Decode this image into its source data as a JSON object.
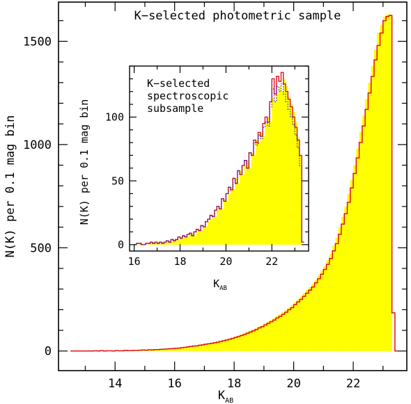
{
  "chart_data": [
    {
      "type": "bar",
      "title": "K−selected photometric sample",
      "xlabel_main": "K",
      "xlabel_sub": "AB",
      "ylabel": "N(K) per 0.1 mag bin",
      "xlim": [
        12.1,
        23.8
      ],
      "ylim": [
        -95,
        1690
      ],
      "xticks": [
        14,
        16,
        18,
        20,
        22
      ],
      "yticks": [
        0,
        500,
        1000,
        1500
      ],
      "bin_width": 0.1,
      "grid": false,
      "series": [
        {
          "style": "yellow fill",
          "color": "#ffff00",
          "x": [
            12.5,
            12.6,
            12.7,
            12.8,
            12.9,
            13.0,
            13.1,
            13.2,
            13.3,
            13.4,
            13.5,
            13.6,
            13.7,
            13.8,
            13.9,
            14.0,
            14.1,
            14.2,
            14.3,
            14.4,
            14.5,
            14.6,
            14.7,
            14.8,
            14.9,
            15.0,
            15.1,
            15.2,
            15.3,
            15.4,
            15.5,
            15.6,
            15.7,
            15.8,
            15.9,
            16.0,
            16.1,
            16.2,
            16.3,
            16.4,
            16.5,
            16.6,
            16.7,
            16.8,
            16.9,
            17.0,
            17.1,
            17.2,
            17.3,
            17.4,
            17.5,
            17.6,
            17.7,
            17.8,
            17.9,
            18.0,
            18.1,
            18.2,
            18.3,
            18.4,
            18.5,
            18.6,
            18.7,
            18.8,
            18.9,
            19.0,
            19.1,
            19.2,
            19.3,
            19.4,
            19.5,
            19.6,
            19.7,
            19.8,
            19.9,
            20.0,
            20.1,
            20.2,
            20.3,
            20.4,
            20.5,
            20.6,
            20.7,
            20.8,
            20.9,
            21.0,
            21.1,
            21.2,
            21.3,
            21.4,
            21.5,
            21.6,
            21.7,
            21.8,
            21.9,
            22.0,
            22.1,
            22.2,
            22.3,
            22.4,
            22.5,
            22.6,
            22.7,
            22.8,
            22.9,
            23.0,
            23.1,
            23.2,
            23.3,
            23.4
          ],
          "values": [
            0,
            0,
            0,
            0,
            0,
            0,
            0,
            0,
            1,
            0,
            2,
            0,
            1,
            1,
            1,
            2,
            1,
            2,
            3,
            2,
            3,
            3,
            4,
            4,
            5,
            5,
            6,
            6,
            7,
            8,
            9,
            10,
            11,
            12,
            13,
            15,
            16,
            18,
            20,
            22,
            24,
            26,
            28,
            30,
            32,
            35,
            38,
            40,
            43,
            46,
            49,
            53,
            57,
            61,
            65,
            70,
            75,
            80,
            86,
            92,
            98,
            104,
            110,
            118,
            126,
            134,
            142,
            150,
            158,
            168,
            178,
            188,
            198,
            210,
            222,
            236,
            250,
            264,
            280,
            296,
            310,
            325,
            345,
            365,
            390,
            410,
            440,
            470,
            510,
            550,
            600,
            650,
            700,
            760,
            830,
            900,
            980,
            1060,
            1140,
            1220,
            1300,
            1380,
            1460,
            1540,
            1580,
            1620,
            1630,
            1630,
            0,
            0
          ]
        },
        {
          "style": "red step line",
          "color": "#e0101a",
          "x": [
            12.5,
            12.6,
            12.7,
            12.8,
            12.9,
            13.0,
            13.1,
            13.2,
            13.3,
            13.4,
            13.5,
            13.6,
            13.7,
            13.8,
            13.9,
            14.0,
            14.1,
            14.2,
            14.3,
            14.4,
            14.5,
            14.6,
            14.7,
            14.8,
            14.9,
            15.0,
            15.1,
            15.2,
            15.3,
            15.4,
            15.5,
            15.6,
            15.7,
            15.8,
            15.9,
            16.0,
            16.1,
            16.2,
            16.3,
            16.4,
            16.5,
            16.6,
            16.7,
            16.8,
            16.9,
            17.0,
            17.1,
            17.2,
            17.3,
            17.4,
            17.5,
            17.6,
            17.7,
            17.8,
            17.9,
            18.0,
            18.1,
            18.2,
            18.3,
            18.4,
            18.5,
            18.6,
            18.7,
            18.8,
            18.9,
            19.0,
            19.1,
            19.2,
            19.3,
            19.4,
            19.5,
            19.6,
            19.7,
            19.8,
            19.9,
            20.0,
            20.1,
            20.2,
            20.3,
            20.4,
            20.5,
            20.6,
            20.7,
            20.8,
            20.9,
            21.0,
            21.1,
            21.2,
            21.3,
            21.4,
            21.5,
            21.6,
            21.7,
            21.8,
            21.9,
            22.0,
            22.1,
            22.2,
            22.3,
            22.4,
            22.5,
            22.6,
            22.7,
            22.8,
            22.9,
            23.0,
            23.1,
            23.2,
            23.3,
            23.4
          ],
          "values": [
            0,
            0,
            0,
            0,
            0,
            0,
            0,
            0,
            1,
            0,
            2,
            0,
            1,
            1,
            0,
            2,
            1,
            1,
            3,
            2,
            2,
            3,
            3,
            4,
            5,
            4,
            6,
            5,
            7,
            7,
            8,
            9,
            10,
            11,
            12,
            13,
            14,
            16,
            18,
            20,
            22,
            24,
            25,
            28,
            30,
            33,
            35,
            37,
            40,
            43,
            46,
            50,
            53,
            57,
            61,
            66,
            70,
            75,
            80,
            86,
            92,
            98,
            104,
            112,
            118,
            126,
            134,
            142,
            150,
            160,
            168,
            178,
            188,
            200,
            210,
            225,
            238,
            250,
            265,
            280,
            295,
            310,
            330,
            350,
            372,
            395,
            420,
            448,
            485,
            520,
            565,
            615,
            665,
            720,
            790,
            860,
            935,
            1010,
            1090,
            1170,
            1250,
            1330,
            1410,
            1480,
            1540,
            1600,
            1620,
            1625,
            185,
            0
          ]
        }
      ]
    },
    {
      "type": "bar",
      "title": "K−selected spectroscopic subsample",
      "title_lines": [
        "K−selected",
        "spectroscopic",
        "subsample"
      ],
      "xlabel_main": "K",
      "xlabel_sub": "AB",
      "ylabel": "N(K) per 0.1 mag bin",
      "xlim": [
        15.8,
        23.6
      ],
      "ylim": [
        -5,
        140
      ],
      "xticks": [
        16,
        18,
        20,
        22
      ],
      "yticks": [
        0,
        50,
        100
      ],
      "bin_width": 0.1,
      "grid": false,
      "series": [
        {
          "style": "yellow fill",
          "color": "#ffff00",
          "x": [
            16.1,
            16.2,
            16.3,
            16.4,
            16.5,
            16.6,
            16.7,
            16.8,
            16.9,
            17.0,
            17.1,
            17.2,
            17.3,
            17.4,
            17.5,
            17.6,
            17.7,
            17.8,
            17.9,
            18.0,
            18.1,
            18.2,
            18.3,
            18.4,
            18.5,
            18.6,
            18.7,
            18.8,
            18.9,
            19.0,
            19.1,
            19.2,
            19.3,
            19.4,
            19.5,
            19.6,
            19.7,
            19.8,
            19.9,
            20.0,
            20.1,
            20.2,
            20.3,
            20.4,
            20.5,
            20.6,
            20.7,
            20.8,
            20.9,
            21.0,
            21.1,
            21.2,
            21.3,
            21.4,
            21.5,
            21.6,
            21.7,
            21.8,
            21.9,
            22.0,
            22.1,
            22.2,
            22.3,
            22.4,
            22.5,
            22.6,
            22.7,
            22.8,
            22.9,
            23.0,
            23.1,
            23.2,
            23.3
          ],
          "values": [
            0,
            1,
            1,
            0,
            0,
            1,
            1,
            2,
            1,
            2,
            1,
            2,
            1,
            2,
            3,
            2,
            4,
            3,
            4,
            6,
            5,
            7,
            6,
            8,
            9,
            7,
            10,
            12,
            11,
            15,
            14,
            18,
            20,
            23,
            22,
            27,
            30,
            28,
            36,
            34,
            40,
            45,
            43,
            52,
            48,
            58,
            55,
            62,
            66,
            60,
            72,
            70,
            82,
            80,
            88,
            85,
            95,
            100,
            96,
            115,
            112,
            118,
            124,
            120,
            130,
            124,
            116,
            110,
            104,
            96,
            84,
            70,
            0
          ]
        },
        {
          "style": "red step line",
          "color": "#e0101a",
          "x": [
            16.1,
            16.2,
            16.3,
            16.4,
            16.5,
            16.6,
            16.7,
            16.8,
            16.9,
            17.0,
            17.1,
            17.2,
            17.3,
            17.4,
            17.5,
            17.6,
            17.7,
            17.8,
            17.9,
            18.0,
            18.1,
            18.2,
            18.3,
            18.4,
            18.5,
            18.6,
            18.7,
            18.8,
            18.9,
            19.0,
            19.1,
            19.2,
            19.3,
            19.4,
            19.5,
            19.6,
            19.7,
            19.8,
            19.9,
            20.0,
            20.1,
            20.2,
            20.3,
            20.4,
            20.5,
            20.6,
            20.7,
            20.8,
            20.9,
            21.0,
            21.1,
            21.2,
            21.3,
            21.4,
            21.5,
            21.6,
            21.7,
            21.8,
            21.9,
            22.0,
            22.1,
            22.2,
            22.3,
            22.4,
            22.5,
            22.6,
            22.7,
            22.8,
            22.9,
            23.0,
            23.1,
            23.2,
            23.3
          ],
          "values": [
            1,
            1,
            0,
            0,
            1,
            1,
            2,
            1,
            2,
            1,
            2,
            1,
            2,
            3,
            2,
            4,
            3,
            4,
            6,
            5,
            7,
            6,
            8,
            9,
            7,
            10,
            12,
            11,
            15,
            14,
            18,
            20,
            23,
            22,
            27,
            30,
            28,
            36,
            34,
            40,
            45,
            43,
            52,
            48,
            58,
            55,
            62,
            66,
            60,
            72,
            70,
            82,
            80,
            88,
            85,
            95,
            100,
            96,
            112,
            130,
            118,
            132,
            128,
            135,
            126,
            120,
            114,
            108,
            100,
            92,
            82,
            70,
            2
          ]
        },
        {
          "style": "blue dotted step line",
          "color": "#2020c0",
          "x": [
            16.1,
            16.2,
            16.3,
            16.4,
            16.5,
            16.6,
            16.7,
            16.8,
            16.9,
            17.0,
            17.1,
            17.2,
            17.3,
            17.4,
            17.5,
            17.6,
            17.7,
            17.8,
            17.9,
            18.0,
            18.1,
            18.2,
            18.3,
            18.4,
            18.5,
            18.6,
            18.7,
            18.8,
            18.9,
            19.0,
            19.1,
            19.2,
            19.3,
            19.4,
            19.5,
            19.6,
            19.7,
            19.8,
            19.9,
            20.0,
            20.1,
            20.2,
            20.3,
            20.4,
            20.5,
            20.6,
            20.7,
            20.8,
            20.9,
            21.0,
            21.1,
            21.2,
            21.3,
            21.4,
            21.5,
            21.6,
            21.7,
            21.8,
            21.9,
            22.0,
            22.1,
            22.2,
            22.3,
            22.4,
            22.5,
            22.6,
            22.7,
            22.8,
            22.9,
            23.0,
            23.1,
            23.2,
            23.3
          ],
          "values": [
            1,
            1,
            0,
            0,
            1,
            1,
            2,
            1,
            2,
            1,
            2,
            1,
            2,
            3,
            2,
            4,
            3,
            4,
            6,
            5,
            7,
            6,
            8,
            9,
            7,
            10,
            12,
            11,
            15,
            14,
            18,
            20,
            23,
            22,
            27,
            30,
            28,
            36,
            34,
            40,
            45,
            43,
            52,
            48,
            58,
            55,
            62,
            66,
            60,
            72,
            70,
            80,
            78,
            86,
            83,
            92,
            96,
            93,
            108,
            122,
            112,
            124,
            120,
            126,
            118,
            112,
            106,
            100,
            94,
            86,
            76,
            62,
            2
          ]
        }
      ]
    }
  ]
}
